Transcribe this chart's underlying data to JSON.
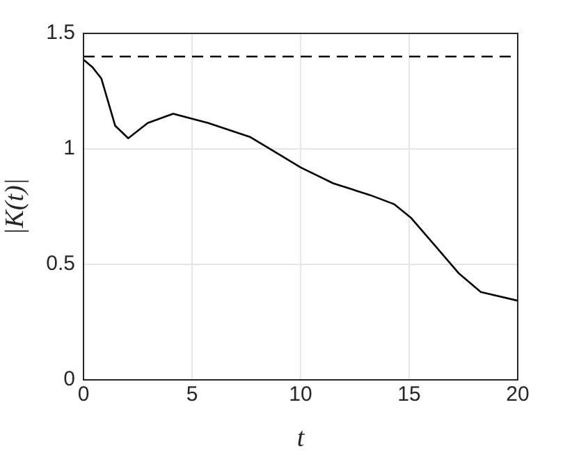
{
  "chart_data": {
    "type": "line",
    "xlabel": "t",
    "ylabel": "|K(t)|",
    "x": [
      0,
      0.4,
      0.82,
      1.46,
      2.06,
      2.96,
      4.13,
      5.74,
      7.66,
      8.94,
      10.0,
      11.5,
      13.2,
      14.3,
      15.1,
      16.2,
      17.3,
      18.3,
      20
    ],
    "series": [
      {
        "color": "#000000",
        "values": [
          1.386,
          1.355,
          1.305,
          1.1,
          1.046,
          1.112,
          1.152,
          1.112,
          1.052,
          0.98,
          0.92,
          0.851,
          0.8,
          0.761,
          0.7,
          0.58,
          0.46,
          0.38,
          0.343
        ]
      }
    ],
    "xlim": [
      0,
      20
    ],
    "xticks": [
      0,
      5,
      10,
      15,
      20
    ],
    "ylim": [
      0,
      1.5
    ],
    "yticks": [
      0,
      0.5,
      1,
      1.5
    ],
    "grid": true,
    "legend": false,
    "marker": "none",
    "line_style": "solid",
    "ref_lines": [
      {
        "axis": "y",
        "value": 1.4,
        "label": null,
        "color": "#000000",
        "line_style": "dashed"
      }
    ]
  }
}
